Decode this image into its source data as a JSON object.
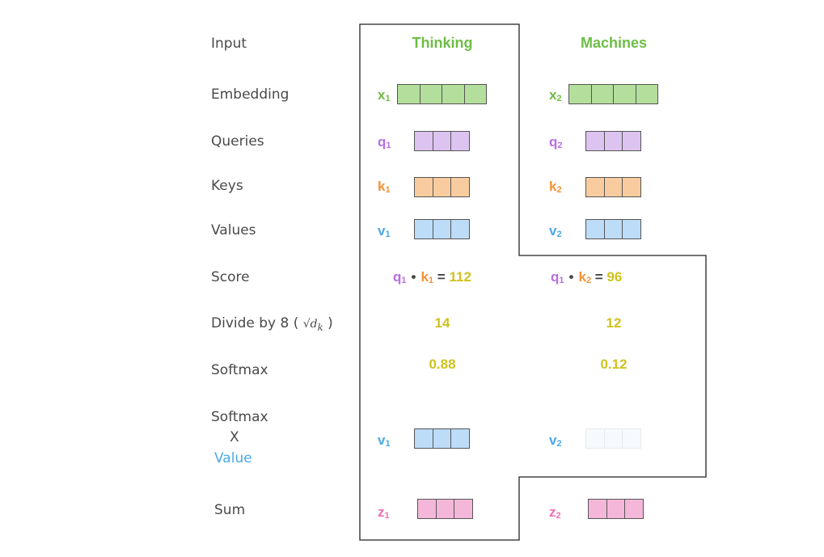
{
  "rows": {
    "input": "Input",
    "embedding": "Embedding",
    "queries": "Queries",
    "keys": "Keys",
    "values": "Values",
    "score": "Score",
    "divide_prefix": "Divide by 8 (",
    "divide_formula": "√d",
    "divide_sub": "k",
    "divide_suffix": ")",
    "softmax": "Softmax",
    "softmax_x_1": "Softmax",
    "softmax_x_2": "X",
    "softmax_x_3": "Value",
    "sum": "Sum"
  },
  "columns": [
    {
      "word": "Thinking",
      "x_label": "x",
      "x_sub": "1",
      "q_label": "q",
      "q_sub": "1",
      "k_label": "k",
      "k_sub": "1",
      "v_label": "v",
      "v_sub": "1",
      "score_q": "q",
      "score_q_sub": "1",
      "score_k": "k",
      "score_k_sub": "1",
      "score_value": "112",
      "divided": "14",
      "softmax": "0.88",
      "wv_label": "v",
      "wv_sub": "1",
      "z_label": "z",
      "z_sub": "1",
      "weighted_opacity": 1.0
    },
    {
      "word": "Machines",
      "x_label": "x",
      "x_sub": "2",
      "q_label": "q",
      "q_sub": "2",
      "k_label": "k",
      "k_sub": "2",
      "v_label": "v",
      "v_sub": "2",
      "score_q": "q",
      "score_q_sub": "1",
      "score_k": "k",
      "score_k_sub": "2",
      "score_value": "96",
      "divided": "12",
      "softmax": "0.12",
      "wv_label": "v",
      "wv_sub": "2",
      "z_label": "z",
      "z_sub": "2",
      "weighted_opacity": 0.12
    }
  ],
  "symbols": {
    "dot": "•",
    "equals": "="
  },
  "colors": {
    "word": "#6dbd45",
    "embedding": "#b3de9c",
    "embedding_label": "#6dbd45",
    "query": "#dcc3f0",
    "query_label": "#b86fe0",
    "key": "#f9cc9f",
    "key_label": "#f59234",
    "value": "#bcdcf8",
    "value_label": "#4aa8e8",
    "output": "#f4b7d9",
    "output_label": "#ec6fb5",
    "score_value": "#cfc21f",
    "row_label": "#4a4a4a",
    "outline": "#222222"
  }
}
